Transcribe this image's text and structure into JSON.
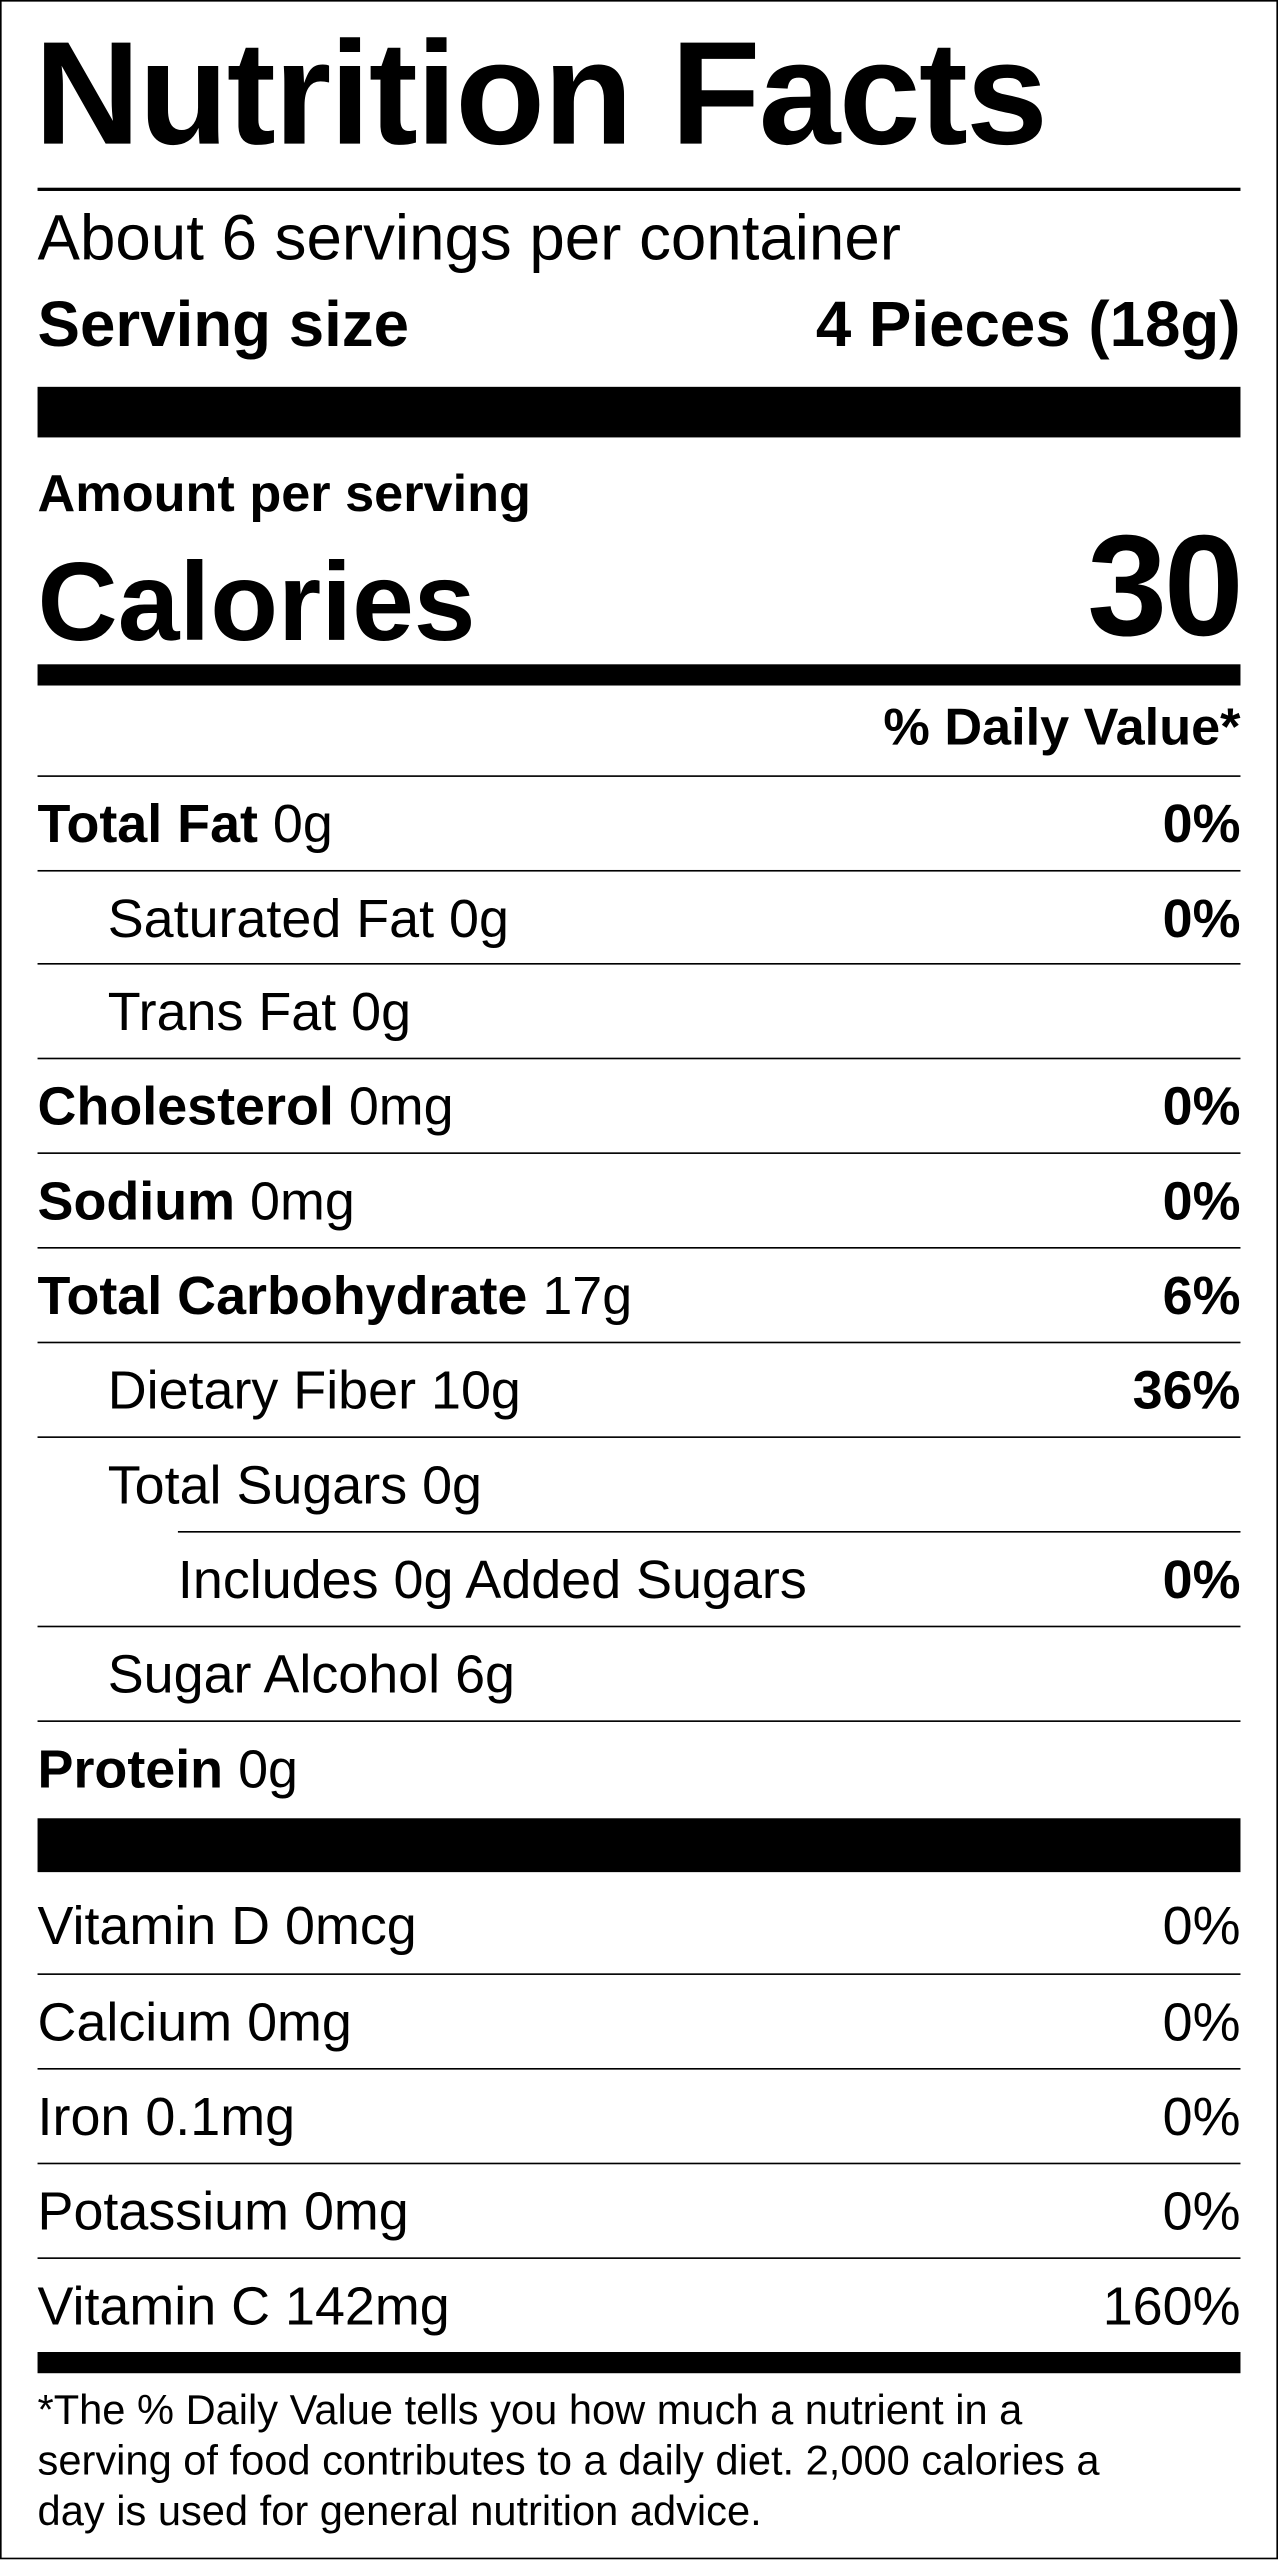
{
  "title": "Nutrition Facts",
  "servings": "About 6 servings per container",
  "serving_size": {
    "label": "Serving size",
    "value": "4 Pieces (18g)"
  },
  "amount_per_serving": "Amount per serving",
  "calories": {
    "label": "Calories",
    "value": "30"
  },
  "daily_value_header": "% Daily Value*",
  "nutrients": [
    {
      "name": "Total Fat",
      "amount": "0g",
      "dv": "0%"
    },
    {
      "name": "Saturated Fat",
      "amount": "0g",
      "dv": "0%"
    },
    {
      "name": "Trans Fat",
      "amount": "0g"
    },
    {
      "name": "Cholesterol",
      "amount": "0mg",
      "dv": "0%"
    },
    {
      "name": "Sodium",
      "amount": "0mg",
      "dv": "0%"
    },
    {
      "name": "Total Carbohydrate",
      "amount": "17g",
      "dv": "6%"
    },
    {
      "name": "Dietary Fiber",
      "amount": "10g",
      "dv": "36%"
    },
    {
      "name": "Total Sugars",
      "amount": "0g"
    },
    {
      "name": "Includes 0g Added Sugars",
      "dv": "0%"
    },
    {
      "name": "Sugar Alcohol",
      "amount": "6g"
    },
    {
      "name": "Protein",
      "amount": "0g"
    }
  ],
  "vitamins": [
    {
      "name": "Vitamin D",
      "amount": "0mcg",
      "dv": "0%"
    },
    {
      "name": "Calcium",
      "amount": "0mg",
      "dv": "0%"
    },
    {
      "name": "Iron",
      "amount": "0.1mg",
      "dv": "0%"
    },
    {
      "name": "Potassium",
      "amount": "0mg",
      "dv": "0%"
    },
    {
      "name": "Vitamin C",
      "amount": "142mg",
      "dv": "160%"
    }
  ],
  "footnote": [
    "*The % Daily Value tells you how much a nutrient in a",
    "serving of food contributes to a daily diet. 2,000 calories a",
    "day is used for general nutrition advice."
  ]
}
